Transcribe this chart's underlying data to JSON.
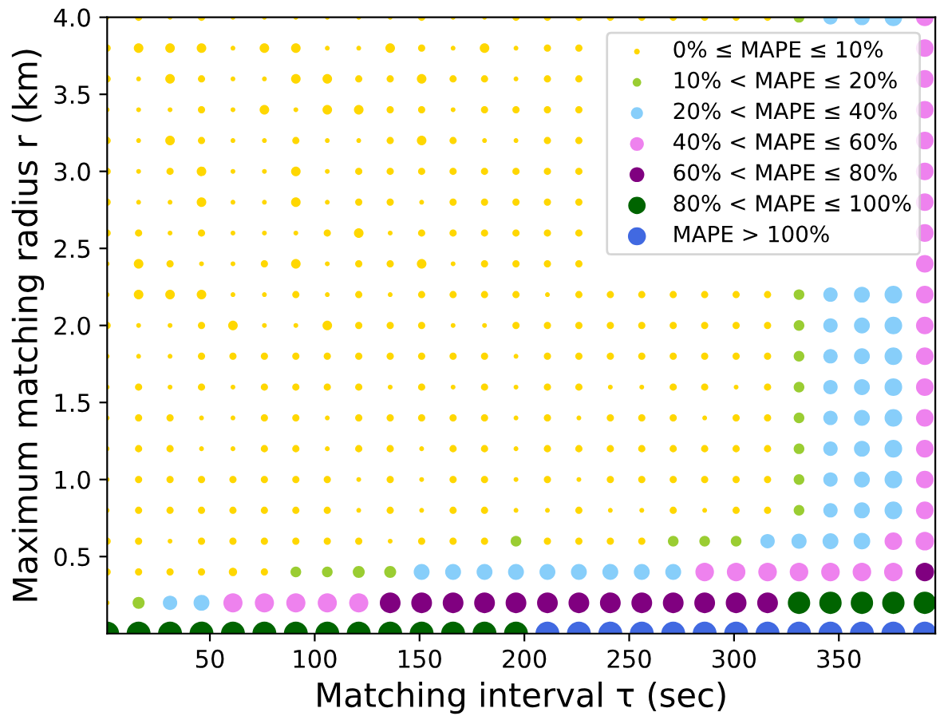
{
  "chart_data": {
    "type": "bubble",
    "xlabel": "Matching interval τ (sec)",
    "ylabel": "Maximum matching radius r (km)",
    "xlim": [
      1,
      396
    ],
    "ylim": [
      0,
      4.0
    ],
    "xticks": [
      50,
      100,
      150,
      200,
      250,
      300,
      350
    ],
    "yticks": [
      0.5,
      {
        "value": 1,
        "label": "1.0"
      },
      1.5,
      {
        "value": 2,
        "label": "2.0"
      },
      2.5,
      {
        "value": 3,
        "label": "3.0"
      },
      3.5,
      {
        "value": 4,
        "label": "4.0"
      }
    ],
    "grid": false,
    "legend": "top right",
    "marker": "circle",
    "series": [
      {
        "name": "0% ≤ MAPE ≤ 10%",
        "color": "#ffd700",
        "x": [
          1,
          16,
          31,
          46,
          61,
          76,
          91,
          106,
          121,
          136,
          151,
          166,
          181,
          196,
          211,
          226,
          241,
          256,
          271,
          286,
          301,
          316,
          1,
          16,
          31,
          46,
          61,
          76,
          91,
          106,
          121,
          136,
          151,
          166,
          181,
          196,
          211,
          226,
          1,
          16,
          31,
          46,
          61,
          76,
          91,
          106,
          121,
          136,
          151,
          166,
          181,
          196,
          211,
          226,
          1,
          16,
          31,
          46,
          61,
          76,
          91,
          106,
          121,
          136,
          151,
          166,
          181,
          196,
          211,
          226,
          1,
          16,
          31,
          46,
          61,
          76,
          91,
          106,
          121,
          136,
          151,
          166,
          181,
          196,
          211,
          226,
          1,
          16,
          31,
          46,
          61,
          76,
          91,
          106,
          121,
          136,
          151,
          166,
          181,
          196,
          211,
          226,
          1,
          16,
          31,
          46,
          61,
          76,
          91,
          106,
          121,
          136,
          151,
          166,
          181,
          196,
          211,
          226,
          1,
          16,
          31,
          46,
          61,
          76,
          91,
          106,
          121,
          136,
          151,
          166,
          181,
          196,
          211,
          226,
          1,
          16,
          31,
          46,
          61,
          76,
          91,
          106,
          121,
          136,
          151,
          166,
          181,
          196,
          211,
          226,
          1,
          16,
          31,
          46,
          61,
          76,
          91,
          106,
          121,
          136,
          151,
          166,
          181,
          196,
          211,
          226,
          241,
          256,
          271,
          286,
          301,
          316,
          1,
          16,
          31,
          46,
          61,
          76,
          91,
          106,
          121,
          136,
          151,
          166,
          181,
          196,
          211,
          226,
          241,
          256,
          271,
          286,
          301,
          316,
          1,
          16,
          31,
          46,
          61,
          76,
          91,
          106,
          121,
          136,
          151,
          166,
          181,
          196,
          211,
          226,
          241,
          256,
          271,
          286,
          301,
          316,
          1,
          16,
          31,
          46,
          61,
          76,
          91,
          106,
          121,
          136,
          151,
          166,
          181,
          196,
          211,
          226,
          241,
          256,
          271,
          286,
          301,
          316,
          1,
          16,
          31,
          46,
          61,
          76,
          91,
          106,
          121,
          136,
          151,
          166,
          181,
          196,
          211,
          226,
          241,
          256,
          271,
          286,
          301,
          316,
          1,
          16,
          31,
          46,
          61,
          76,
          91,
          106,
          121,
          136,
          151,
          166,
          181,
          196,
          211,
          226,
          241,
          256,
          271,
          286,
          301,
          316,
          1,
          16,
          31,
          46,
          61,
          76,
          91,
          106,
          121,
          136,
          151,
          166,
          181,
          196,
          211,
          226,
          241,
          256,
          271,
          286,
          301,
          316,
          1,
          16,
          31,
          46,
          61,
          76,
          91,
          106,
          121,
          136,
          151,
          166,
          181,
          196,
          211,
          226,
          241,
          256,
          271,
          286,
          301,
          316,
          1,
          16,
          31,
          46,
          61,
          76,
          91,
          106,
          121,
          136,
          151,
          166,
          181,
          211,
          226,
          241,
          256,
          1,
          16,
          31,
          46,
          61,
          76,
          1
        ],
        "values": [
          4.0,
          4.0,
          4.0,
          4.0,
          4.0,
          4.0,
          4.0,
          4.0,
          4.0,
          4.0,
          4.0,
          4.0,
          4.0,
          4.0,
          4.0,
          4.0,
          4.0,
          4.0,
          4.0,
          4.0,
          4.0,
          4.0,
          3.8,
          3.8,
          3.8,
          3.8,
          3.8,
          3.8,
          3.8,
          3.8,
          3.8,
          3.8,
          3.8,
          3.8,
          3.8,
          3.8,
          3.8,
          3.8,
          3.6,
          3.6,
          3.6,
          3.6,
          3.6,
          3.6,
          3.6,
          3.6,
          3.6,
          3.6,
          3.6,
          3.6,
          3.6,
          3.6,
          3.6,
          3.6,
          3.4,
          3.4,
          3.4,
          3.4,
          3.4,
          3.4,
          3.4,
          3.4,
          3.4,
          3.4,
          3.4,
          3.4,
          3.4,
          3.4,
          3.4,
          3.4,
          3.2,
          3.2,
          3.2,
          3.2,
          3.2,
          3.2,
          3.2,
          3.2,
          3.2,
          3.2,
          3.2,
          3.2,
          3.2,
          3.2,
          3.2,
          3.2,
          3.0,
          3.0,
          3.0,
          3.0,
          3.0,
          3.0,
          3.0,
          3.0,
          3.0,
          3.0,
          3.0,
          3.0,
          3.0,
          3.0,
          3.0,
          3.0,
          2.8,
          2.8,
          2.8,
          2.8,
          2.8,
          2.8,
          2.8,
          2.8,
          2.8,
          2.8,
          2.8,
          2.8,
          2.8,
          2.8,
          2.8,
          2.8,
          2.6,
          2.6,
          2.6,
          2.6,
          2.6,
          2.6,
          2.6,
          2.6,
          2.6,
          2.6,
          2.6,
          2.6,
          2.6,
          2.6,
          2.6,
          2.6,
          2.4,
          2.4,
          2.4,
          2.4,
          2.4,
          2.4,
          2.4,
          2.4,
          2.4,
          2.4,
          2.4,
          2.4,
          2.4,
          2.4,
          2.4,
          2.4,
          2.2,
          2.2,
          2.2,
          2.2,
          2.2,
          2.2,
          2.2,
          2.2,
          2.2,
          2.2,
          2.2,
          2.2,
          2.2,
          2.2,
          2.2,
          2.2,
          2.2,
          2.2,
          2.2,
          2.2,
          2.2,
          2.2,
          2.0,
          2.0,
          2.0,
          2.0,
          2.0,
          2.0,
          2.0,
          2.0,
          2.0,
          2.0,
          2.0,
          2.0,
          2.0,
          2.0,
          2.0,
          2.0,
          2.0,
          2.0,
          2.0,
          2.0,
          2.0,
          2.0,
          1.8,
          1.8,
          1.8,
          1.8,
          1.8,
          1.8,
          1.8,
          1.8,
          1.8,
          1.8,
          1.8,
          1.8,
          1.8,
          1.8,
          1.8,
          1.8,
          1.8,
          1.8,
          1.8,
          1.8,
          1.8,
          1.8,
          1.6,
          1.6,
          1.6,
          1.6,
          1.6,
          1.6,
          1.6,
          1.6,
          1.6,
          1.6,
          1.6,
          1.6,
          1.6,
          1.6,
          1.6,
          1.6,
          1.6,
          1.6,
          1.6,
          1.6,
          1.6,
          1.6,
          1.4,
          1.4,
          1.4,
          1.4,
          1.4,
          1.4,
          1.4,
          1.4,
          1.4,
          1.4,
          1.4,
          1.4,
          1.4,
          1.4,
          1.4,
          1.4,
          1.4,
          1.4,
          1.4,
          1.4,
          1.4,
          1.4,
          1.2,
          1.2,
          1.2,
          1.2,
          1.2,
          1.2,
          1.2,
          1.2,
          1.2,
          1.2,
          1.2,
          1.2,
          1.2,
          1.2,
          1.2,
          1.2,
          1.2,
          1.2,
          1.2,
          1.2,
          1.2,
          1.2,
          1.0,
          1.0,
          1.0,
          1.0,
          1.0,
          1.0,
          1.0,
          1.0,
          1.0,
          1.0,
          1.0,
          1.0,
          1.0,
          1.0,
          1.0,
          1.0,
          1.0,
          1.0,
          1.0,
          1.0,
          1.0,
          1.0,
          0.8,
          0.8,
          0.8,
          0.8,
          0.8,
          0.8,
          0.8,
          0.8,
          0.8,
          0.8,
          0.8,
          0.8,
          0.8,
          0.8,
          0.8,
          0.8,
          0.8,
          0.8,
          0.8,
          0.8,
          0.8,
          0.8,
          0.6,
          0.6,
          0.6,
          0.6,
          0.6,
          0.6,
          0.6,
          0.6,
          0.6,
          0.6,
          0.6,
          0.6,
          0.6,
          0.6,
          0.6,
          0.6,
          0.6,
          0.4,
          0.4,
          0.4,
          0.4,
          0.4,
          0.4,
          0.2
        ],
        "sizes": [
          0.04,
          0.09,
          0.04,
          0.09,
          0.04,
          0.04,
          0.04,
          0.04,
          0.04,
          0.04,
          0.09,
          0.04,
          0.04,
          0.09,
          0.09,
          0.09,
          0.09,
          0.09,
          0.09,
          0.09,
          0.09,
          0.09,
          0.09,
          0.16,
          0.16,
          0.16,
          0.04,
          0.16,
          0.16,
          0.04,
          0.04,
          0.16,
          0.09,
          0.04,
          0.16,
          0.04,
          0.09,
          0.09,
          0.09,
          0.04,
          0.16,
          0.09,
          0.04,
          0.04,
          0.16,
          0.16,
          0.09,
          0.09,
          0.16,
          0.09,
          0.09,
          0.04,
          0.09,
          0.09,
          0.04,
          0.04,
          0.04,
          0.09,
          0.04,
          0.16,
          0.04,
          0.16,
          0.16,
          0.09,
          0.09,
          0.04,
          0.09,
          0.09,
          0.09,
          0.09,
          0.09,
          0.04,
          0.16,
          0.09,
          0.04,
          0.04,
          0.09,
          0.04,
          0.04,
          0.09,
          0.16,
          0.09,
          0.04,
          0.04,
          0.09,
          0.09,
          0.09,
          0.04,
          0.09,
          0.16,
          0.04,
          0.04,
          0.16,
          0.04,
          0.09,
          0.09,
          0.09,
          0.09,
          0.09,
          0.09,
          0.09,
          0.09,
          0.09,
          0.04,
          0.04,
          0.16,
          0.04,
          0.04,
          0.16,
          0.04,
          0.09,
          0.09,
          0.04,
          0.09,
          0.09,
          0.09,
          0.09,
          0.09,
          0.09,
          0.09,
          0.04,
          0.09,
          0.04,
          0.04,
          0.04,
          0.09,
          0.16,
          0.04,
          0.09,
          0.09,
          0.09,
          0.09,
          0.09,
          0.09,
          0.04,
          0.16,
          0.09,
          0.04,
          0.04,
          0.09,
          0.16,
          0.04,
          0.09,
          0.09,
          0.16,
          0.04,
          0.09,
          0.09,
          0.09,
          0.09,
          0.04,
          0.16,
          0.16,
          0.16,
          0.04,
          0.04,
          0.09,
          0.04,
          0.09,
          0.04,
          0.09,
          0.09,
          0.09,
          0.09,
          0.04,
          0.09,
          0.09,
          0.09,
          0.09,
          0.09,
          0.09,
          0.09,
          0.09,
          0.04,
          0.04,
          0.09,
          0.16,
          0.04,
          0.04,
          0.16,
          0.09,
          0.09,
          0.09,
          0.04,
          0.04,
          0.09,
          0.09,
          0.09,
          0.09,
          0.09,
          0.09,
          0.09,
          0.09,
          0.09,
          0.04,
          0.04,
          0.04,
          0.09,
          0.09,
          0.09,
          0.09,
          0.09,
          0.09,
          0.09,
          0.09,
          0.09,
          0.09,
          0.04,
          0.09,
          0.09,
          0.09,
          0.09,
          0.09,
          0.09,
          0.09,
          0.09,
          0.04,
          0.09,
          0.04,
          0.09,
          0.04,
          0.09,
          0.09,
          0.09,
          0.09,
          0.04,
          0.09,
          0.04,
          0.09,
          0.04,
          0.09,
          0.09,
          0.04,
          0.04,
          0.09,
          0.09,
          0.04,
          0.09,
          0.04,
          0.09,
          0.09,
          0.04,
          0.04,
          0.09,
          0.09,
          0.04,
          0.09,
          0.09,
          0.09,
          0.09,
          0.09,
          0.04,
          0.09,
          0.04,
          0.09,
          0.09,
          0.09,
          0.04,
          0.09,
          0.09,
          0.04,
          0.09,
          0.09,
          0.04,
          0.04,
          0.09,
          0.09,
          0.04,
          0.09,
          0.09,
          0.04,
          0.09,
          0.09,
          0.04,
          0.09,
          0.09,
          0.09,
          0.09,
          0.09,
          0.09,
          0.09,
          0.09,
          0.04,
          0.09,
          0.09,
          0.09,
          0.09,
          0.09,
          0.09,
          0.09,
          0.04,
          0.09,
          0.04,
          0.09,
          0.09,
          0.04,
          0.09,
          0.04,
          0.09,
          0.09,
          0.09,
          0.09,
          0.09,
          0.09,
          0.04,
          0.09,
          0.09,
          0.09,
          0.09,
          0.09,
          0.09,
          0.09,
          0.04,
          0.09,
          0.04,
          0.09,
          0.09,
          0.04,
          0.04,
          0.09,
          0.04,
          0.04,
          0.09,
          0.04,
          0.09,
          0.09,
          0.09,
          0.09,
          0.04,
          0.09,
          0.09,
          0.09,
          0.09,
          0.09,
          0.09,
          0.04,
          0.09,
          0.09,
          0.09,
          0.09,
          0.09,
          0.09,
          0.09,
          0.09,
          0.09,
          0.09,
          0.09,
          0.12,
          0.09,
          0.04
        ]
      },
      {
        "name": "10% < MAPE ≤ 20%",
        "color": "#9acd32",
        "x": [
          16,
          91,
          106,
          121,
          136,
          196,
          271,
          286,
          301,
          331,
          331,
          331,
          331,
          331,
          331,
          331,
          331,
          331
        ],
        "values": [
          0.2,
          0.4,
          0.4,
          0.4,
          0.4,
          0.6,
          0.6,
          0.6,
          0.6,
          4.0,
          2.2,
          2.0,
          1.8,
          1.6,
          1.4,
          1.2,
          1.0,
          0.8
        ],
        "sizes": [
          0.25,
          0.2,
          0.2,
          0.25,
          0.25,
          0.2,
          0.2,
          0.2,
          0.2,
          0.2,
          0.2,
          0.2,
          0.2,
          0.2,
          0.2,
          0.2,
          0.2,
          0.2
        ]
      },
      {
        "name": "20% < MAPE ≤ 40%",
        "color": "#87cefa",
        "x": [
          31,
          46,
          151,
          166,
          181,
          196,
          211,
          226,
          241,
          256,
          271,
          316,
          331,
          346,
          361,
          346,
          361,
          376,
          346,
          361,
          376,
          346,
          361,
          376,
          346,
          361,
          376,
          346,
          361,
          376,
          346,
          361,
          376,
          346,
          361,
          376,
          346,
          361,
          376,
          346,
          361,
          376
        ],
        "values": [
          0.2,
          0.2,
          0.4,
          0.4,
          0.4,
          0.4,
          0.4,
          0.4,
          0.4,
          0.4,
          0.4,
          0.6,
          0.6,
          0.6,
          0.6,
          4.0,
          4.0,
          4.0,
          2.2,
          2.2,
          2.2,
          2.0,
          2.0,
          2.0,
          1.8,
          1.8,
          1.8,
          1.6,
          1.6,
          1.6,
          1.4,
          1.4,
          1.4,
          1.2,
          1.2,
          1.2,
          1.0,
          1.0,
          1.0,
          0.8,
          0.8,
          0.8
        ],
        "sizes": [
          0.36,
          0.44,
          0.44,
          0.44,
          0.44,
          0.44,
          0.44,
          0.44,
          0.44,
          0.44,
          0.44,
          0.36,
          0.4,
          0.44,
          0.48,
          0.36,
          0.44,
          0.54,
          0.36,
          0.44,
          0.54,
          0.36,
          0.44,
          0.54,
          0.36,
          0.44,
          0.54,
          0.36,
          0.44,
          0.54,
          0.36,
          0.44,
          0.54,
          0.36,
          0.44,
          0.54,
          0.36,
          0.44,
          0.54,
          0.36,
          0.44,
          0.54
        ]
      },
      {
        "name": "40% < MAPE ≤ 60%",
        "color": "#ee82ee",
        "x": [
          61,
          76,
          91,
          106,
          121,
          286,
          301,
          316,
          331,
          346,
          361,
          376,
          376,
          391,
          391,
          391,
          391,
          391,
          391,
          391,
          391,
          391,
          391,
          391,
          391,
          391,
          391,
          391,
          391,
          391,
          391
        ],
        "values": [
          0.2,
          0.2,
          0.2,
          0.2,
          0.2,
          0.4,
          0.4,
          0.4,
          0.4,
          0.4,
          0.4,
          0.4,
          0.6,
          0.6,
          4.0,
          3.8,
          3.6,
          3.4,
          3.2,
          3.0,
          2.8,
          2.6,
          2.4,
          2.2,
          2.0,
          1.8,
          1.6,
          1.4,
          1.2,
          1.0,
          0.8
        ],
        "sizes": [
          0.64,
          0.64,
          0.64,
          0.64,
          0.64,
          0.6,
          0.6,
          0.6,
          0.6,
          0.6,
          0.6,
          0.6,
          0.54,
          0.6,
          0.54,
          0.54,
          0.54,
          0.54,
          0.54,
          0.54,
          0.54,
          0.54,
          0.54,
          0.54,
          0.54,
          0.54,
          0.54,
          0.54,
          0.54,
          0.54,
          0.54
        ]
      },
      {
        "name": "60% < MAPE ≤ 80%",
        "color": "#800080",
        "x": [
          136,
          151,
          166,
          181,
          196,
          211,
          226,
          241,
          256,
          271,
          286,
          301,
          316,
          391
        ],
        "values": [
          0.2,
          0.2,
          0.2,
          0.2,
          0.2,
          0.2,
          0.2,
          0.2,
          0.2,
          0.2,
          0.2,
          0.2,
          0.2,
          0.4
        ],
        "sizes": [
          0.75,
          0.75,
          0.75,
          0.75,
          0.75,
          0.75,
          0.75,
          0.75,
          0.75,
          0.75,
          0.75,
          0.75,
          0.75,
          0.6
        ]
      },
      {
        "name": "80% < MAPE ≤ 100%",
        "color": "#006400",
        "x": [
          1,
          16,
          31,
          46,
          61,
          76,
          91,
          106,
          121,
          136,
          151,
          166,
          181,
          196,
          331,
          346,
          361,
          376,
          391
        ],
        "values": [
          0,
          0,
          0,
          0,
          0,
          0,
          0,
          0,
          0,
          0,
          0,
          0,
          0,
          0,
          0.2,
          0.2,
          0.2,
          0.2,
          0.2
        ],
        "sizes": [
          1,
          1,
          1,
          1,
          1,
          1,
          1,
          1,
          1,
          1,
          1,
          1,
          1,
          1,
          0.87,
          0.87,
          0.87,
          0.87,
          0.87
        ]
      },
      {
        "name": "MAPE > 100%",
        "color": "#4169e1",
        "x": [
          211,
          226,
          241,
          256,
          271,
          286,
          301,
          316,
          331,
          346,
          361,
          376,
          391
        ],
        "values": [
          0,
          0,
          0,
          0,
          0,
          0,
          0,
          0,
          0,
          0,
          0,
          0,
          0
        ],
        "sizes": [
          1,
          1,
          1,
          1,
          1,
          1,
          1,
          1,
          1,
          1,
          1,
          1,
          1
        ]
      }
    ]
  }
}
